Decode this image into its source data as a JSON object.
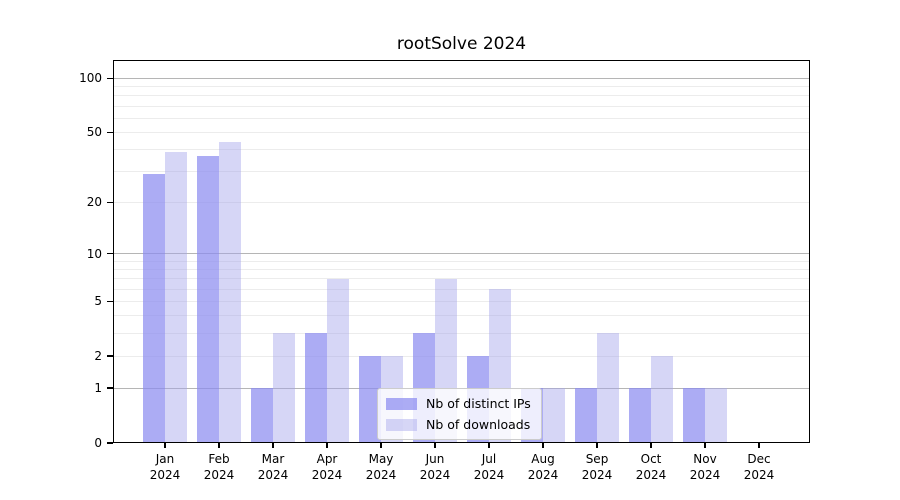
{
  "chart_data": {
    "type": "bar",
    "title": "rootSolve 2024",
    "categories": [
      "Jan",
      "Feb",
      "Mar",
      "Apr",
      "May",
      "Jun",
      "Jul",
      "Aug",
      "Sep",
      "Oct",
      "Nov",
      "Dec"
    ],
    "x_tick_line2": "2024",
    "series": [
      {
        "key": "distinct-ips",
        "name": "Nb of distinct IPs",
        "values": [
          29,
          37,
          1,
          3,
          2,
          3,
          2,
          1,
          1,
          1,
          1,
          0
        ],
        "color": "rgba(140,140,240,0.72)"
      },
      {
        "key": "downloads",
        "name": "Nb of downloads",
        "values": [
          39,
          44,
          3,
          7,
          2,
          7,
          6,
          1,
          3,
          2,
          1,
          0
        ],
        "color": "rgba(165,165,235,0.45)"
      }
    ],
    "y_axis": {
      "scale": "log1p",
      "tick_labels": [
        "100",
        "50",
        "20",
        "10",
        "5",
        "2",
        "1",
        "0"
      ],
      "tick_values": [
        100,
        50,
        20,
        10,
        5,
        2,
        1,
        0
      ],
      "gridlines": [
        1,
        2,
        3,
        4,
        5,
        6,
        7,
        8,
        9,
        10,
        20,
        30,
        40,
        50,
        60,
        70,
        80,
        90,
        100
      ],
      "major_gridlines": [
        1,
        10,
        100
      ],
      "range_bottom": 0
    },
    "legend_position": "bottom-center",
    "grid": true
  },
  "colors": {
    "grid_major": "#b5b5b5",
    "grid_minor": "#ececec",
    "axis": "#000000",
    "background": "#ffffff",
    "text": "#000000"
  }
}
